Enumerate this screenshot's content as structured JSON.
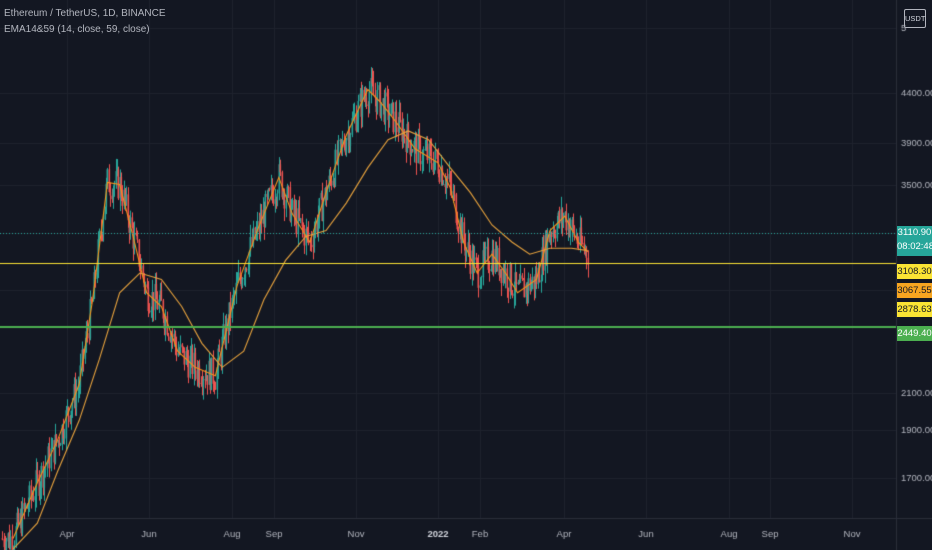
{
  "header": {
    "title": "Ethereum / TetherUS, 1D, BINANCE",
    "indicator": "EMA14&59 (14, close, 59, close)"
  },
  "currency_button": "USDT",
  "price_tags": [
    {
      "label": "3110.90",
      "sub": "08:02:48",
      "bg": "#26a69a",
      "fg": "#ffffff"
    },
    {
      "label": "3108.30",
      "bg": "#fbe434",
      "fg": "#131722"
    },
    {
      "label": "3067.55",
      "bg": "#f7a520",
      "fg": "#131722"
    },
    {
      "label": "2878.63",
      "bg": "#fbe434",
      "fg": "#131722"
    },
    {
      "label": "2449.40",
      "bg": "#4caf50",
      "fg": "#ffffff"
    }
  ],
  "colors": {
    "background": "#131722",
    "grid": "#1e222d",
    "up_candle": "#26a69a",
    "down_candle": "#ef5350",
    "ema14": "#f7931a",
    "ema59": "#e8a33d",
    "hline_yellow": "#fbe434",
    "hline_green": "#4caf50",
    "last_price_line": "#26a69a"
  },
  "chart_data": {
    "type": "line",
    "title": "Ethereum / TetherUS, 1D, BINANCE",
    "y_scale": "log",
    "y_ticks": [
      "5",
      "4400.00",
      "3900.00",
      "3500.00",
      "2100.00",
      "1900.00",
      "1700.00"
    ],
    "x_ticks": [
      "Apr",
      "Jun",
      "Aug",
      "Sep",
      "Nov",
      "2022",
      "Feb",
      "Apr",
      "Jun",
      "Aug",
      "Sep",
      "Nov"
    ],
    "grid": true,
    "horizontal_lines": [
      {
        "price": 2987,
        "color": "yellow"
      },
      {
        "price": 2600,
        "color": "green"
      }
    ],
    "last_price": 3110.9,
    "series": [
      {
        "name": "EMA14",
        "color": "#f7931a",
        "x": [
          "2021-02-20",
          "2021-03-10",
          "2021-03-25",
          "2021-04-10",
          "2021-04-20",
          "2021-05-01",
          "2021-05-10",
          "2021-05-20",
          "2021-05-30",
          "2021-06-10",
          "2021-06-22",
          "2021-07-05",
          "2021-07-20",
          "2021-08-05",
          "2021-08-20",
          "2021-09-05",
          "2021-09-15",
          "2021-09-28",
          "2021-10-10",
          "2021-10-25",
          "2021-11-10",
          "2021-11-20",
          "2021-12-01",
          "2021-12-15",
          "2022-01-01",
          "2022-01-10",
          "2022-01-20",
          "2022-01-30",
          "2022-02-10",
          "2022-02-20",
          "2022-03-01",
          "2022-03-15",
          "2022-03-25",
          "2022-04-05",
          "2022-04-15",
          "2022-04-22"
        ],
        "values": [
          1420,
          1650,
          1850,
          2150,
          2700,
          3700,
          3680,
          3200,
          2750,
          2650,
          2350,
          2250,
          2200,
          2800,
          3250,
          3750,
          3400,
          3150,
          3600,
          4200,
          4750,
          4580,
          4350,
          4050,
          3900,
          3650,
          3150,
          2900,
          3050,
          2900,
          2750,
          2850,
          3250,
          3380,
          3150,
          3070
        ]
      },
      {
        "name": "EMA59",
        "color": "#e8a33d",
        "x": [
          "2021-02-20",
          "2021-03-10",
          "2021-03-25",
          "2021-04-10",
          "2021-04-25",
          "2021-05-10",
          "2021-05-25",
          "2021-06-10",
          "2021-06-25",
          "2021-07-10",
          "2021-07-25",
          "2021-08-10",
          "2021-08-25",
          "2021-09-10",
          "2021-09-25",
          "2021-10-10",
          "2021-10-25",
          "2021-11-10",
          "2021-11-25",
          "2021-12-10",
          "2021-12-25",
          "2022-01-10",
          "2022-01-25",
          "2022-02-10",
          "2022-02-25",
          "2022-03-10",
          "2022-03-25",
          "2022-04-10",
          "2022-04-22"
        ],
        "values": [
          1380,
          1480,
          1700,
          1950,
          2300,
          2750,
          2900,
          2850,
          2650,
          2400,
          2250,
          2350,
          2700,
          3000,
          3200,
          3250,
          3500,
          3850,
          4150,
          4250,
          4150,
          3850,
          3600,
          3300,
          3150,
          3050,
          3100,
          3100,
          3080
        ]
      }
    ]
  }
}
